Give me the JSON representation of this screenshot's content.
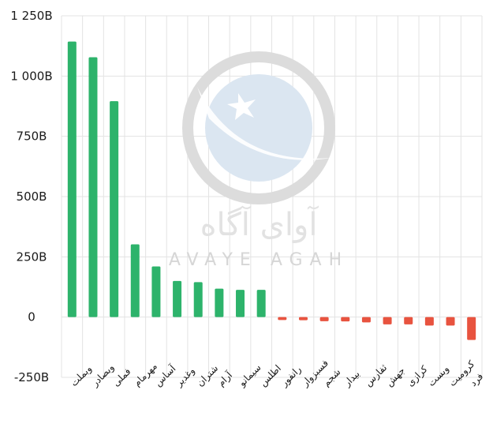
{
  "chart_data": {
    "type": "bar",
    "title": "",
    "xlabel": "",
    "ylabel": "",
    "ylim": [
      -250,
      1250
    ],
    "yticks": [
      -250,
      0,
      250,
      500,
      750,
      1000,
      1250
    ],
    "ytick_labels": [
      "-250B",
      "0",
      "250B",
      "500B",
      "750B",
      "1 000B",
      "1 250B"
    ],
    "grid": true,
    "categories": [
      "وبملت",
      "وبصادر",
      "فملی",
      "مهرمام",
      "آساس",
      "وغدیر",
      "شتران",
      "آرام",
      "سیمانو",
      "اطلس",
      "رانفور",
      "فسبزوار",
      "شجم",
      "بیدار",
      "ثفارس",
      "جهش",
      "کرازی",
      "وبست",
      "کرومیت",
      "فرد"
    ],
    "values": [
      1143,
      1078,
      896,
      302,
      210,
      150,
      145,
      118,
      113,
      113,
      -12,
      -13,
      -17,
      -18,
      -22,
      -30,
      -30,
      -35,
      -35,
      -95
    ],
    "positive_color": "#2db36b",
    "negative_color": "#e8533f"
  },
  "watermark": {
    "name_fa": "آوای آگاه",
    "name_en": "AVAYE AGAH"
  }
}
